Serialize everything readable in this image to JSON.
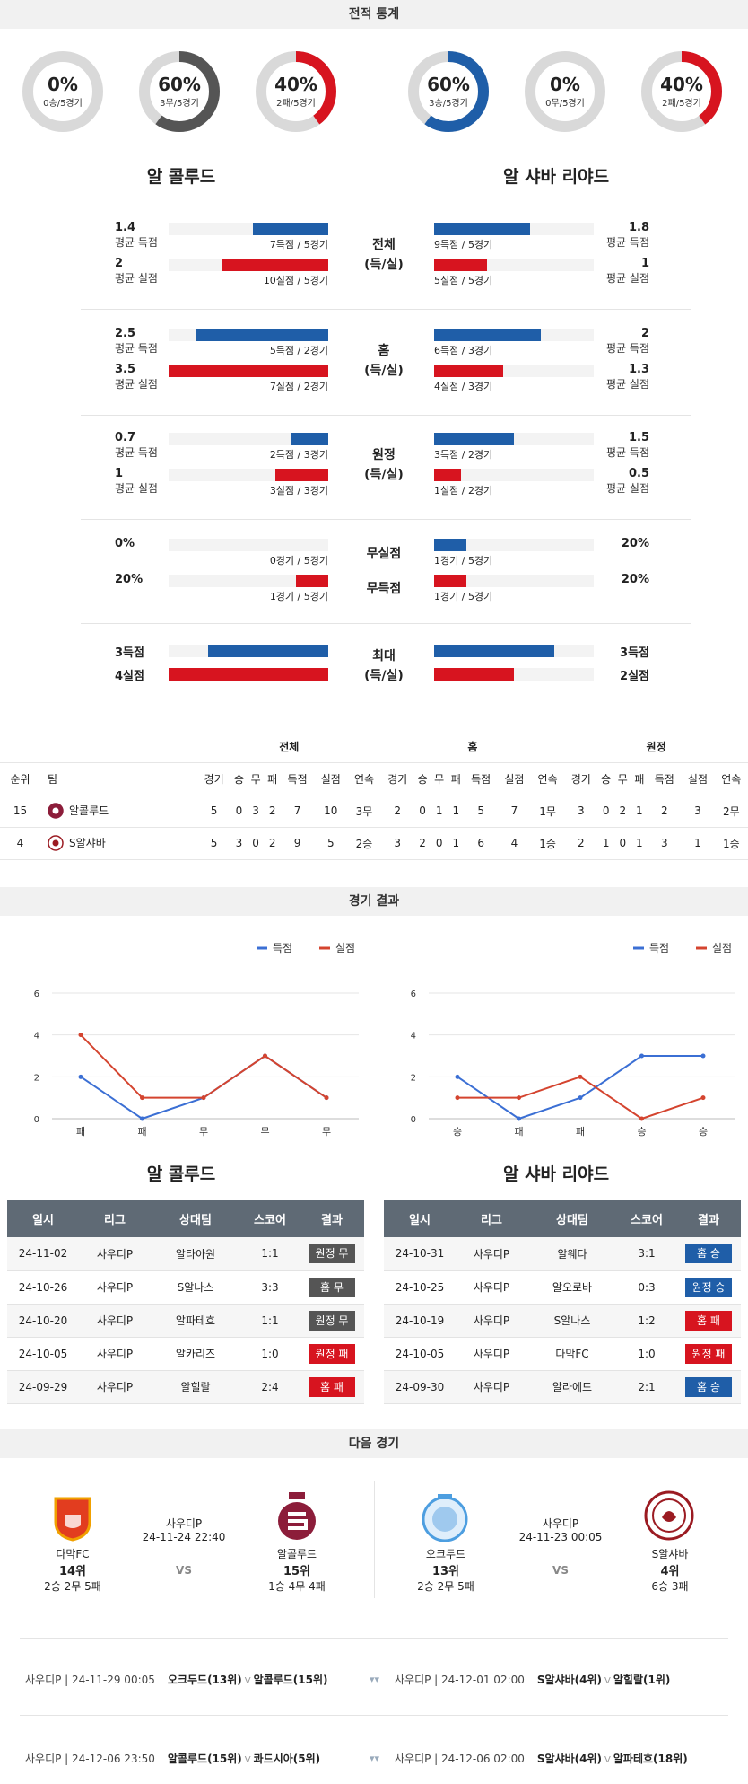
{
  "sections": {
    "record": "전적 통계",
    "results": "경기 결과",
    "next": "다음 경기"
  },
  "donuts_left": [
    {
      "pct": "0%",
      "sub": "0승/5경기",
      "value": 0,
      "color": "#1f5ea8"
    },
    {
      "pct": "60%",
      "sub": "3무/5경기",
      "value": 60,
      "color": "#555555"
    },
    {
      "pct": "40%",
      "sub": "2패/5경기",
      "value": 40,
      "color": "#d7141f"
    }
  ],
  "donuts_right": [
    {
      "pct": "60%",
      "sub": "3승/5경기",
      "value": 60,
      "color": "#1f5ea8"
    },
    {
      "pct": "0%",
      "sub": "0무/5경기",
      "value": 0,
      "color": "#555555"
    },
    {
      "pct": "40%",
      "sub": "2패/5경기",
      "value": 40,
      "color": "#d7141f"
    }
  ],
  "teams": {
    "left": "알 콜루드",
    "right": "알 샤바 리야드"
  },
  "stat_groups": [
    {
      "label1": "전체",
      "label2": "(득/실)",
      "rows": [
        {
          "l_val": "1.4",
          "l_lbl": "평균 득점",
          "l_cnt": "7득점 / 5경기",
          "l_frac": 0.47,
          "r_val": "1.8",
          "r_lbl": "평균 득점",
          "r_cnt": "9득점 / 5경기",
          "r_frac": 0.6,
          "color": "blue"
        },
        {
          "l_val": "2",
          "l_lbl": "평균 실점",
          "l_cnt": "10실점 / 5경기",
          "l_frac": 0.67,
          "r_val": "1",
          "r_lbl": "평균 실점",
          "r_cnt": "5실점 / 5경기",
          "r_frac": 0.33,
          "color": "red"
        }
      ]
    },
    {
      "label1": "홈",
      "label2": "(득/실)",
      "rows": [
        {
          "l_val": "2.5",
          "l_lbl": "평균 득점",
          "l_cnt": "5득점 / 2경기",
          "l_frac": 0.83,
          "r_val": "2",
          "r_lbl": "평균 득점",
          "r_cnt": "6득점 / 3경기",
          "r_frac": 0.67,
          "color": "blue"
        },
        {
          "l_val": "3.5",
          "l_lbl": "평균 실점",
          "l_cnt": "7실점 / 2경기",
          "l_frac": 1.0,
          "r_val": "1.3",
          "r_lbl": "평균 실점",
          "r_cnt": "4실점 / 3경기",
          "r_frac": 0.43,
          "color": "red"
        }
      ]
    },
    {
      "label1": "원정",
      "label2": "(득/실)",
      "rows": [
        {
          "l_val": "0.7",
          "l_lbl": "평균 득점",
          "l_cnt": "2득점 / 3경기",
          "l_frac": 0.23,
          "r_val": "1.5",
          "r_lbl": "평균 득점",
          "r_cnt": "3득점 / 2경기",
          "r_frac": 0.5,
          "color": "blue"
        },
        {
          "l_val": "1",
          "l_lbl": "평균 실점",
          "l_cnt": "3실점 / 3경기",
          "l_frac": 0.33,
          "r_val": "0.5",
          "r_lbl": "평균 실점",
          "r_cnt": "1실점 / 2경기",
          "r_frac": 0.17,
          "color": "red"
        }
      ]
    }
  ],
  "shutout": {
    "label_a": "무실점",
    "label_b": "무득점",
    "rows": [
      {
        "l_val": "0%",
        "l_cnt": "0경기 / 5경기",
        "l_frac": 0.0,
        "r_val": "20%",
        "r_cnt": "1경기 / 5경기",
        "r_frac": 0.2,
        "color": "blue"
      },
      {
        "l_val": "20%",
        "l_cnt": "1경기 / 5경기",
        "l_frac": 0.2,
        "r_val": "20%",
        "r_cnt": "1경기 / 5경기",
        "r_frac": 0.2,
        "color": "red"
      }
    ]
  },
  "maxrow": {
    "label1": "최대",
    "label2": "(득/실)",
    "rows": [
      {
        "l_val": "3득점",
        "l_frac": 0.75,
        "r_val": "3득점",
        "r_frac": 0.75,
        "color": "blue"
      },
      {
        "l_val": "4실점",
        "l_frac": 1.0,
        "r_val": "2실점",
        "r_frac": 0.5,
        "color": "red"
      }
    ]
  },
  "standings": {
    "groups": [
      "전체",
      "홈",
      "원정"
    ],
    "headers": [
      "순위",
      "팀",
      "경기",
      "승",
      "무",
      "패",
      "득점",
      "실점",
      "연속",
      "경기",
      "승",
      "무",
      "패",
      "득점",
      "실점",
      "연속",
      "경기",
      "승",
      "무",
      "패",
      "득점",
      "실점",
      "연속"
    ],
    "rows": [
      {
        "rank": "15",
        "team": "알콜루드",
        "cells": [
          "5",
          "0",
          "3",
          "2",
          "7",
          "10",
          "3무",
          "2",
          "0",
          "1",
          "1",
          "5",
          "7",
          "1무",
          "3",
          "0",
          "2",
          "1",
          "2",
          "3",
          "2무"
        ]
      },
      {
        "rank": "4",
        "team": "S알샤바",
        "cells": [
          "5",
          "3",
          "0",
          "2",
          "9",
          "5",
          "2승",
          "3",
          "2",
          "0",
          "1",
          "6",
          "4",
          "1승",
          "2",
          "1",
          "0",
          "1",
          "3",
          "1",
          "1승"
        ]
      }
    ]
  },
  "chart_data": [
    {
      "type": "line",
      "categories": [
        "패",
        "패",
        "무",
        "무",
        "무"
      ],
      "series": [
        {
          "name": "득점",
          "values": [
            2,
            0,
            1,
            3,
            1
          ],
          "color": "#3b6fd4"
        },
        {
          "name": "실점",
          "values": [
            4,
            1,
            1,
            3,
            1
          ],
          "color": "#d4442f"
        }
      ],
      "ylim": [
        0,
        6
      ],
      "yticks": [
        "0",
        "2",
        "4",
        "6"
      ],
      "legend": "top-center"
    },
    {
      "type": "line",
      "categories": [
        "승",
        "패",
        "패",
        "승",
        "승"
      ],
      "series": [
        {
          "name": "득점",
          "values": [
            2,
            0,
            1,
            3,
            3
          ],
          "color": "#3b6fd4"
        },
        {
          "name": "실점",
          "values": [
            1,
            1,
            2,
            0,
            1
          ],
          "color": "#d4442f"
        }
      ],
      "ylim": [
        0,
        6
      ],
      "yticks": [
        "0",
        "2",
        "4",
        "6"
      ],
      "legend": "top-center"
    }
  ],
  "results_headers": [
    "일시",
    "리그",
    "상대팀",
    "스코어",
    "결과"
  ],
  "results_left": [
    {
      "date": "24-11-02",
      "league": "사우디P",
      "opp": "알타아원",
      "score": "1:1",
      "result": "원정 무",
      "color": "gray"
    },
    {
      "date": "24-10-26",
      "league": "사우디P",
      "opp": "S알나스",
      "score": "3:3",
      "result": "홈 무",
      "color": "gray"
    },
    {
      "date": "24-10-20",
      "league": "사우디P",
      "opp": "알파테흐",
      "score": "1:1",
      "result": "원정 무",
      "color": "gray"
    },
    {
      "date": "24-10-05",
      "league": "사우디P",
      "opp": "알카리즈",
      "score": "1:0",
      "result": "원정 패",
      "color": "red"
    },
    {
      "date": "24-09-29",
      "league": "사우디P",
      "opp": "알힐랄",
      "score": "2:4",
      "result": "홈 패",
      "color": "red"
    }
  ],
  "results_right": [
    {
      "date": "24-10-31",
      "league": "사우디P",
      "opp": "알웨다",
      "score": "3:1",
      "result": "홈 승",
      "color": "blue"
    },
    {
      "date": "24-10-25",
      "league": "사우디P",
      "opp": "알오로바",
      "score": "0:3",
      "result": "원정 승",
      "color": "blue"
    },
    {
      "date": "24-10-19",
      "league": "사우디P",
      "opp": "S알나스",
      "score": "1:2",
      "result": "홈 패",
      "color": "red"
    },
    {
      "date": "24-10-05",
      "league": "사우디P",
      "opp": "다막FC",
      "score": "1:0",
      "result": "원정 패",
      "color": "red"
    },
    {
      "date": "24-09-30",
      "league": "사우디P",
      "opp": "알라에드",
      "score": "2:1",
      "result": "홈 승",
      "color": "blue"
    }
  ],
  "next": {
    "left": {
      "league": "사우디P",
      "datetime": "24-11-24 22:40",
      "vs": "VS",
      "home": {
        "name": "다막FC",
        "rank": "14위",
        "record": "2승 2무 5패"
      },
      "away": {
        "name": "알콜루드",
        "rank": "15위",
        "record": "1승 4무 4패"
      }
    },
    "right": {
      "league": "사우디P",
      "datetime": "24-11-23 00:05",
      "vs": "VS",
      "home": {
        "name": "오크두드",
        "rank": "13위",
        "record": "2승 2무 5패"
      },
      "away": {
        "name": "S알샤바",
        "rank": "4위",
        "record": "6승 3패"
      }
    }
  },
  "schedule": [
    {
      "l_info": "사우디P | 24-11-29 00:05",
      "l_a": "오크두드(13위)",
      "l_b": "알콜루드(15위)",
      "r_info": "사우디P | 24-12-01 02:00",
      "r_a": "S알샤바(4위)",
      "r_b": "알힐랄(1위)"
    },
    {
      "l_info": "사우디P | 24-12-06 23:50",
      "l_a": "알콜루드(15위)",
      "l_b": "콰드시아(5위)",
      "r_info": "사우디P | 24-12-06 02:00",
      "r_a": "S알샤바(4위)",
      "r_b": "알파테흐(18위)"
    }
  ]
}
